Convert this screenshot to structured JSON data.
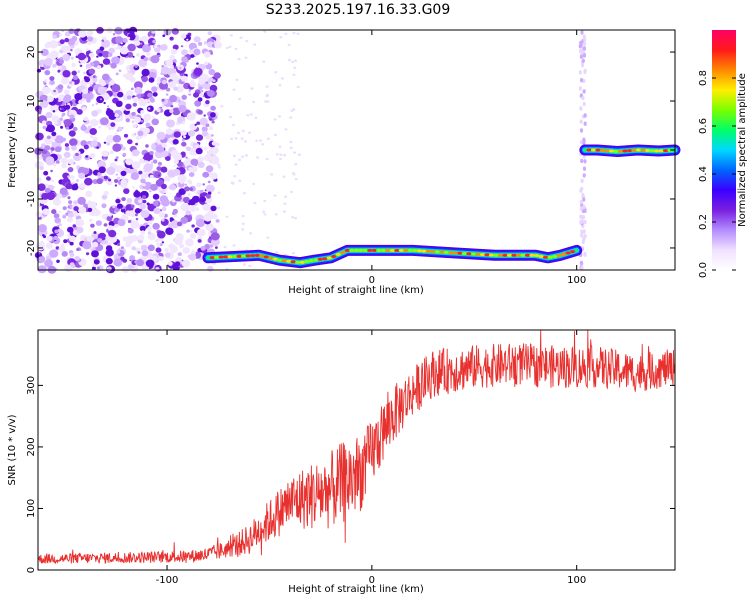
{
  "figure_title": "S233.2025.197.16.33.G09",
  "colors": {
    "snr_line": "#e8312f",
    "spectrum_cmap": [
      "#ffffff",
      "#f0e0ff",
      "#b38cff",
      "#7a1fe0",
      "#3a00ff",
      "#0066ff",
      "#00d8ff",
      "#00ff66",
      "#7cff00",
      "#ffee00",
      "#ff8800",
      "#ff1a1a",
      "#ff0066"
    ]
  },
  "chart_data": [
    {
      "type": "heatmap",
      "xlabel": "Height of straight line (km)",
      "ylabel": "Frequency (Hz)",
      "xlim": [
        -163,
        148
      ],
      "ylim": [
        -24.5,
        24.5
      ],
      "xticks": [
        -100,
        0,
        100
      ],
      "yticks": [
        -20,
        -10,
        0,
        10,
        20
      ],
      "colorbar": {
        "label": "Normalized spectral amplitude",
        "range": [
          0,
          1
        ],
        "ticks": [
          0.0,
          0.2,
          0.4,
          0.6,
          0.8
        ]
      },
      "signal_track": {
        "segments": [
          {
            "x": [
              -80,
              -55,
              -45,
              -35,
              -28,
              -20,
              -12,
              0,
              20,
              40,
              60,
              80,
              86,
              92,
              100
            ],
            "freq": [
              -22,
              -21.5,
              -22.5,
              -23,
              -22.5,
              -22,
              -20.5,
              -20.5,
              -20.5,
              -21,
              -21.5,
              -21.5,
              -22,
              -21.5,
              -20.5
            ]
          },
          {
            "x": [
              104,
              110,
              120,
              130,
              140,
              148
            ],
            "freq": [
              0,
              0,
              -0.3,
              0,
              -0.2,
              0
            ]
          }
        ]
      },
      "noise_region_x": [
        -163,
        -75
      ],
      "noise_band_x": 103
    },
    {
      "type": "line",
      "xlabel": "Height of straight line (km)",
      "ylabel": "SNR (10 * v/v)",
      "xlim": [
        -163,
        148
      ],
      "ylim": [
        0,
        390
      ],
      "xticks": [
        -100,
        0,
        100
      ],
      "yticks": [
        0,
        100,
        200,
        300
      ],
      "trend": {
        "x": [
          -163,
          -120,
          -90,
          -80,
          -70,
          -60,
          -50,
          -40,
          -30,
          -20,
          -15,
          -10,
          -5,
          0,
          10,
          20,
          30,
          50,
          70,
          90,
          110,
          130,
          148
        ],
        "y": [
          18,
          20,
          22,
          25,
          35,
          50,
          80,
          110,
          120,
          130,
          140,
          150,
          160,
          190,
          250,
          290,
          320,
          330,
          335,
          330,
          330,
          320,
          330
        ]
      },
      "noise_amplitude": {
        "x": [
          -163,
          -90,
          -70,
          -55,
          -40,
          -25,
          -10,
          0,
          20,
          60,
          100,
          148
        ],
        "y": [
          8,
          10,
          15,
          30,
          45,
          60,
          70,
          55,
          40,
          35,
          35,
          30
        ]
      }
    }
  ]
}
